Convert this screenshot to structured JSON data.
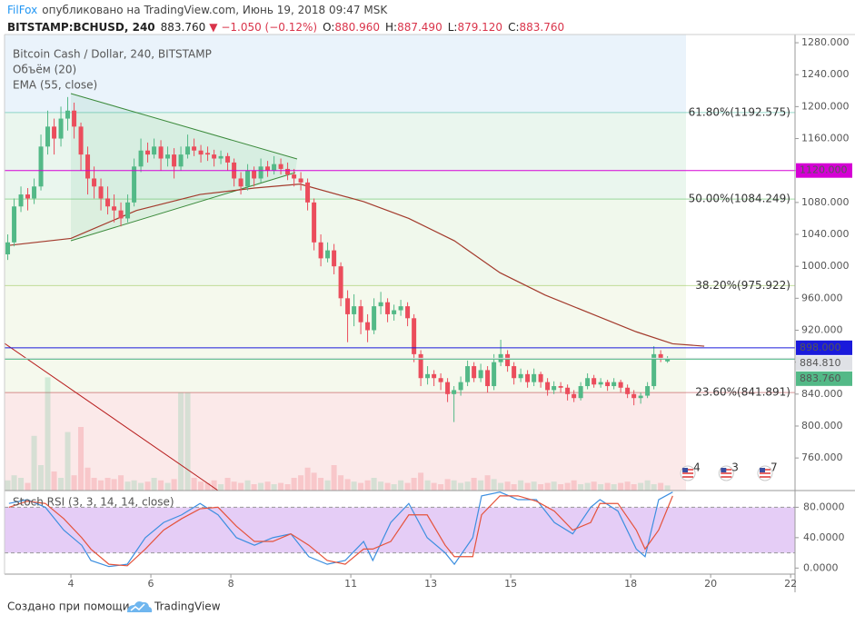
{
  "header": {
    "author": "FilFox",
    "published": "опубликовано на TradingView.com, Июнь 19, 2018 09:47 MSK",
    "symbol": "BITSTAMP:BCHUSD, 240",
    "last": "883.760",
    "change": "▼ −1.050 (−0.12%)",
    "ohlc": [
      {
        "key": "O:",
        "value": "880.960"
      },
      {
        "key": "H:",
        "value": "887.490"
      },
      {
        "key": "L:",
        "value": "879.120"
      },
      {
        "key": "C:",
        "value": "883.760"
      }
    ]
  },
  "footer": {
    "credit": "Создано при помощи",
    "brand": "TradingView"
  },
  "chart_data": [
    {
      "type": "candlestick",
      "title": "Bitcoin Cash / Dollar, 240, BITSTAMP",
      "volume_name": "Объём (20)",
      "up_color": "#53b987",
      "down_color": "#eb4d5c",
      "x": [
        2.42,
        2.58,
        2.75,
        2.92,
        3.08,
        3.25,
        3.42,
        3.58,
        3.75,
        3.92,
        4.08,
        4.25,
        4.42,
        4.58,
        4.75,
        4.92,
        5.08,
        5.25,
        5.42,
        5.58,
        5.75,
        5.92,
        6.08,
        6.25,
        6.42,
        6.58,
        6.75,
        6.92,
        7.08,
        7.25,
        7.42,
        7.58,
        7.75,
        7.92,
        8.08,
        8.25,
        8.42,
        8.58,
        8.75,
        8.92,
        9.08,
        9.25,
        9.42,
        9.58,
        9.75,
        9.92,
        10.08,
        10.25,
        10.42,
        10.58,
        10.75,
        10.92,
        11.08,
        11.25,
        11.42,
        11.58,
        11.75,
        11.92,
        12.08,
        12.25,
        12.42,
        12.58,
        12.75,
        12.92,
        13.08,
        13.25,
        13.42,
        13.58,
        13.75,
        13.92,
        14.08,
        14.25,
        14.42,
        14.58,
        14.75,
        14.92,
        15.08,
        15.25,
        15.42,
        15.58,
        15.75,
        15.92,
        16.08,
        16.25,
        16.42,
        16.58,
        16.75,
        16.92,
        17.08,
        17.25,
        17.42,
        17.58,
        17.75,
        17.92,
        18.08,
        18.25,
        18.42,
        18.58,
        18.75,
        18.92
      ],
      "candles": [
        [
          1015,
          1040,
          1008,
          1030
        ],
        [
          1030,
          1085,
          1025,
          1075
        ],
        [
          1075,
          1100,
          1068,
          1090
        ],
        [
          1090,
          1098,
          1070,
          1085
        ],
        [
          1085,
          1110,
          1078,
          1100
        ],
        [
          1100,
          1165,
          1095,
          1150
        ],
        [
          1150,
          1195,
          1140,
          1175
        ],
        [
          1175,
          1185,
          1140,
          1160
        ],
        [
          1160,
          1200,
          1150,
          1185
        ],
        [
          1185,
          1212,
          1170,
          1195
        ],
        [
          1195,
          1205,
          1160,
          1175
        ],
        [
          1175,
          1180,
          1120,
          1140
        ],
        [
          1140,
          1150,
          1090,
          1110
        ],
        [
          1110,
          1125,
          1085,
          1100
        ],
        [
          1100,
          1110,
          1070,
          1085
        ],
        [
          1085,
          1100,
          1065,
          1075
        ],
        [
          1075,
          1090,
          1055,
          1070
        ],
        [
          1070,
          1080,
          1050,
          1060
        ],
        [
          1060,
          1090,
          1055,
          1080
        ],
        [
          1080,
          1135,
          1075,
          1125
        ],
        [
          1125,
          1160,
          1118,
          1145
        ],
        [
          1145,
          1155,
          1130,
          1140
        ],
        [
          1140,
          1160,
          1135,
          1150
        ],
        [
          1150,
          1158,
          1120,
          1135
        ],
        [
          1135,
          1150,
          1125,
          1140
        ],
        [
          1140,
          1148,
          1110,
          1125
        ],
        [
          1125,
          1150,
          1120,
          1140
        ],
        [
          1140,
          1165,
          1135,
          1150
        ],
        [
          1150,
          1160,
          1138,
          1145
        ],
        [
          1145,
          1152,
          1130,
          1140
        ],
        [
          1142,
          1150,
          1132,
          1140
        ],
        [
          1140,
          1146,
          1125,
          1135
        ],
        [
          1135,
          1145,
          1128,
          1138
        ],
        [
          1138,
          1142,
          1120,
          1130
        ],
        [
          1130,
          1135,
          1100,
          1110
        ],
        [
          1110,
          1118,
          1090,
          1100
        ],
        [
          1100,
          1128,
          1095,
          1120
        ],
        [
          1120,
          1125,
          1100,
          1110
        ],
        [
          1110,
          1135,
          1105,
          1125
        ],
        [
          1125,
          1132,
          1112,
          1120
        ],
        [
          1120,
          1138,
          1115,
          1128
        ],
        [
          1128,
          1135,
          1115,
          1122
        ],
        [
          1122,
          1130,
          1108,
          1115
        ],
        [
          1115,
          1122,
          1100,
          1110
        ],
        [
          1110,
          1118,
          1095,
          1105
        ],
        [
          1105,
          1110,
          1070,
          1080
        ],
        [
          1080,
          1085,
          1020,
          1030
        ],
        [
          1030,
          1040,
          1000,
          1010
        ],
        [
          1010,
          1030,
          1005,
          1020
        ],
        [
          1020,
          1028,
          990,
          1000
        ],
        [
          1000,
          1005,
          950,
          960
        ],
        [
          960,
          970,
          905,
          940
        ],
        [
          940,
          965,
          925,
          950
        ],
        [
          950,
          958,
          915,
          930
        ],
        [
          930,
          940,
          905,
          920
        ],
        [
          920,
          960,
          915,
          950
        ],
        [
          950,
          968,
          940,
          955
        ],
        [
          955,
          960,
          930,
          940
        ],
        [
          940,
          952,
          932,
          945
        ],
        [
          945,
          958,
          938,
          950
        ],
        [
          950,
          955,
          925,
          935
        ],
        [
          935,
          940,
          880,
          890
        ],
        [
          890,
          895,
          850,
          860
        ],
        [
          860,
          875,
          852,
          865
        ],
        [
          865,
          870,
          850,
          860
        ],
        [
          860,
          866,
          845,
          855
        ],
        [
          855,
          860,
          830,
          840
        ],
        [
          840,
          850,
          805,
          845
        ],
        [
          845,
          862,
          838,
          855
        ],
        [
          855,
          882,
          850,
          875
        ],
        [
          875,
          880,
          855,
          860
        ],
        [
          860,
          878,
          855,
          870
        ],
        [
          870,
          875,
          842,
          850
        ],
        [
          850,
          890,
          845,
          880
        ],
        [
          880,
          908,
          875,
          890
        ],
        [
          890,
          895,
          868,
          875
        ],
        [
          875,
          880,
          852,
          860
        ],
        [
          860,
          872,
          855,
          865
        ],
        [
          865,
          870,
          848,
          855
        ],
        [
          855,
          872,
          850,
          865
        ],
        [
          865,
          868,
          848,
          855
        ],
        [
          855,
          860,
          838,
          845
        ],
        [
          845,
          856,
          840,
          850
        ],
        [
          850,
          855,
          842,
          848
        ],
        [
          848,
          852,
          832,
          840
        ],
        [
          840,
          845,
          830,
          835
        ],
        [
          835,
          855,
          832,
          850
        ],
        [
          850,
          866,
          846,
          860
        ],
        [
          860,
          864,
          848,
          852
        ],
        [
          852,
          860,
          848,
          855
        ],
        [
          855,
          858,
          844,
          850
        ],
        [
          850,
          860,
          846,
          855
        ],
        [
          855,
          858,
          842,
          848
        ],
        [
          848,
          852,
          835,
          840
        ],
        [
          840,
          845,
          826,
          835
        ],
        [
          835,
          842,
          828,
          838
        ],
        [
          838,
          855,
          835,
          850
        ],
        [
          850,
          900,
          846,
          890
        ],
        [
          890,
          895,
          880,
          885
        ],
        [
          880.96,
          887.49,
          879.12,
          883.76
        ]
      ],
      "volume": [
        8,
        12,
        10,
        6,
        43,
        20,
        89,
        15,
        10,
        46,
        12,
        50,
        18,
        10,
        8,
        10,
        9,
        12,
        7,
        8,
        6,
        7,
        10,
        8,
        6,
        9,
        77,
        77,
        10,
        7,
        6,
        8,
        5,
        10,
        7,
        6,
        8,
        5,
        6,
        7,
        5,
        6,
        5,
        10,
        12,
        18,
        14,
        10,
        8,
        20,
        12,
        9,
        7,
        6,
        8,
        10,
        7,
        6,
        5,
        8,
        6,
        10,
        14,
        8,
        6,
        5,
        9,
        8,
        6,
        7,
        10,
        8,
        12,
        9,
        6,
        7,
        5,
        8,
        6,
        7,
        5,
        6,
        7,
        5,
        6,
        8,
        5,
        6,
        7,
        5,
        6,
        5,
        6,
        7,
        5,
        6,
        8,
        5,
        6,
        4
      ],
      "vlim": [
        0,
        100
      ],
      "ema": {
        "name": "EMA (55, close)",
        "color": "#a33a2c",
        "x": [
          2.41,
          4,
          5.64,
          7.23,
          8.59,
          9.73,
          11.32,
          12.45,
          13.59,
          14.73,
          15.86,
          17,
          18.14,
          19.05,
          19.84
        ],
        "values": [
          1026,
          1035,
          1070,
          1090,
          1098,
          1103,
          1081,
          1060,
          1032,
          992,
          964,
          941,
          918,
          903,
          900
        ]
      },
      "fib": {
        "top_fill": "#eaf3fb",
        "levels": [
          {
            "value": 1192.575,
            "label": "61.80%(1192.575)",
            "color": "#2fb59a",
            "fill": "#eaf6ee"
          },
          {
            "value": 1084.249,
            "label": "50.00%(1084.249)",
            "color": "#43b548",
            "fill": "#f0f8ec"
          },
          {
            "value": 975.922,
            "label": "38.20%(975.922)",
            "color": "#8cc23f",
            "fill": "#f5f9ed"
          },
          {
            "value": 841.891,
            "label": "23.60%(841.891)",
            "color": "#b3272c",
            "fill": "#fbe9e9"
          }
        ]
      },
      "price_lines": [
        {
          "value": 1120,
          "label": "1120.000",
          "color": "#d500d5",
          "text_color": "#ffffff"
        },
        {
          "value": 898,
          "label": "898.000",
          "color": "#1a1adb",
          "text_color": "#ffffff"
        },
        {
          "value": 884.81,
          "label": "884.810",
          "color": "#dfe1e6",
          "text_color": "#222222"
        },
        {
          "value": 883.76,
          "label": "883.760",
          "color": "#53b987",
          "text_color": "#ffffff"
        }
      ],
      "events": [
        {
          "x": 19.43,
          "count": 4
        },
        {
          "x": 20.39,
          "count": 3
        },
        {
          "x": 21.36,
          "count": 7
        }
      ],
      "xlim": [
        2.34,
        22.11
      ],
      "xticks": [
        4,
        6,
        8,
        11,
        13,
        15,
        18,
        20,
        22
      ],
      "ylim": [
        719.2,
        1290.3
      ],
      "yticks": [
        {
          "value": 1280,
          "label": "1280.000"
        },
        {
          "value": 1240,
          "label": "1240.000"
        },
        {
          "value": 1200,
          "label": "1200.000"
        },
        {
          "value": 1160,
          "label": "1160.000"
        },
        {
          "value": 1120,
          "label": "1120.000"
        },
        {
          "value": 1080,
          "label": "1080.000"
        },
        {
          "value": 1040,
          "label": "1040.000"
        },
        {
          "value": 1000,
          "label": "1000.000"
        },
        {
          "value": 960,
          "label": "960.000"
        },
        {
          "value": 920,
          "label": "920.000"
        },
        {
          "value": 880,
          "label": "880.000"
        },
        {
          "value": 840,
          "label": "840.000"
        },
        {
          "value": 800,
          "label": "800.000"
        },
        {
          "value": 760,
          "label": "760.000"
        }
      ]
    },
    {
      "type": "line",
      "title": "Stoch RSI (3, 3, 14, 14, close)",
      "band": [
        20,
        80
      ],
      "band_color": "#dcbcf3",
      "x": [
        2.45,
        2.91,
        3.36,
        3.82,
        4.27,
        4.5,
        4.95,
        5.41,
        5.86,
        6.32,
        6.77,
        7.23,
        7.68,
        8.14,
        8.59,
        9.05,
        9.5,
        9.95,
        10.41,
        10.86,
        11.32,
        11.55,
        12,
        12.45,
        12.91,
        13.36,
        13.59,
        14.05,
        14.27,
        14.73,
        15.18,
        15.64,
        16.09,
        16.55,
        17,
        17.23,
        17.68,
        18.14,
        18.36,
        18.7,
        19.05
      ],
      "series": [
        {
          "color": "#3d8fe0",
          "values": [
            85,
            90,
            80,
            50,
            30,
            10,
            2,
            5,
            40,
            60,
            70,
            85,
            70,
            40,
            30,
            40,
            45,
            15,
            5,
            10,
            35,
            10,
            60,
            85,
            40,
            20,
            5,
            40,
            95,
            100,
            90,
            90,
            60,
            45,
            80,
            90,
            75,
            25,
            15,
            90,
            100
          ]
        },
        {
          "color": "#e5533b",
          "values": [
            80,
            88,
            85,
            65,
            40,
            25,
            5,
            3,
            25,
            50,
            65,
            78,
            80,
            55,
            35,
            35,
            45,
            30,
            10,
            5,
            25,
            25,
            35,
            70,
            70,
            30,
            15,
            15,
            70,
            95,
            95,
            88,
            75,
            50,
            60,
            85,
            85,
            50,
            25,
            50,
            95
          ]
        }
      ],
      "ylim": [
        -8,
        102
      ],
      "yticks": [
        {
          "value": 80,
          "label": "80.0000"
        },
        {
          "value": 40,
          "label": "40.0000"
        },
        {
          "value": 0,
          "label": "0.0000"
        }
      ]
    }
  ]
}
